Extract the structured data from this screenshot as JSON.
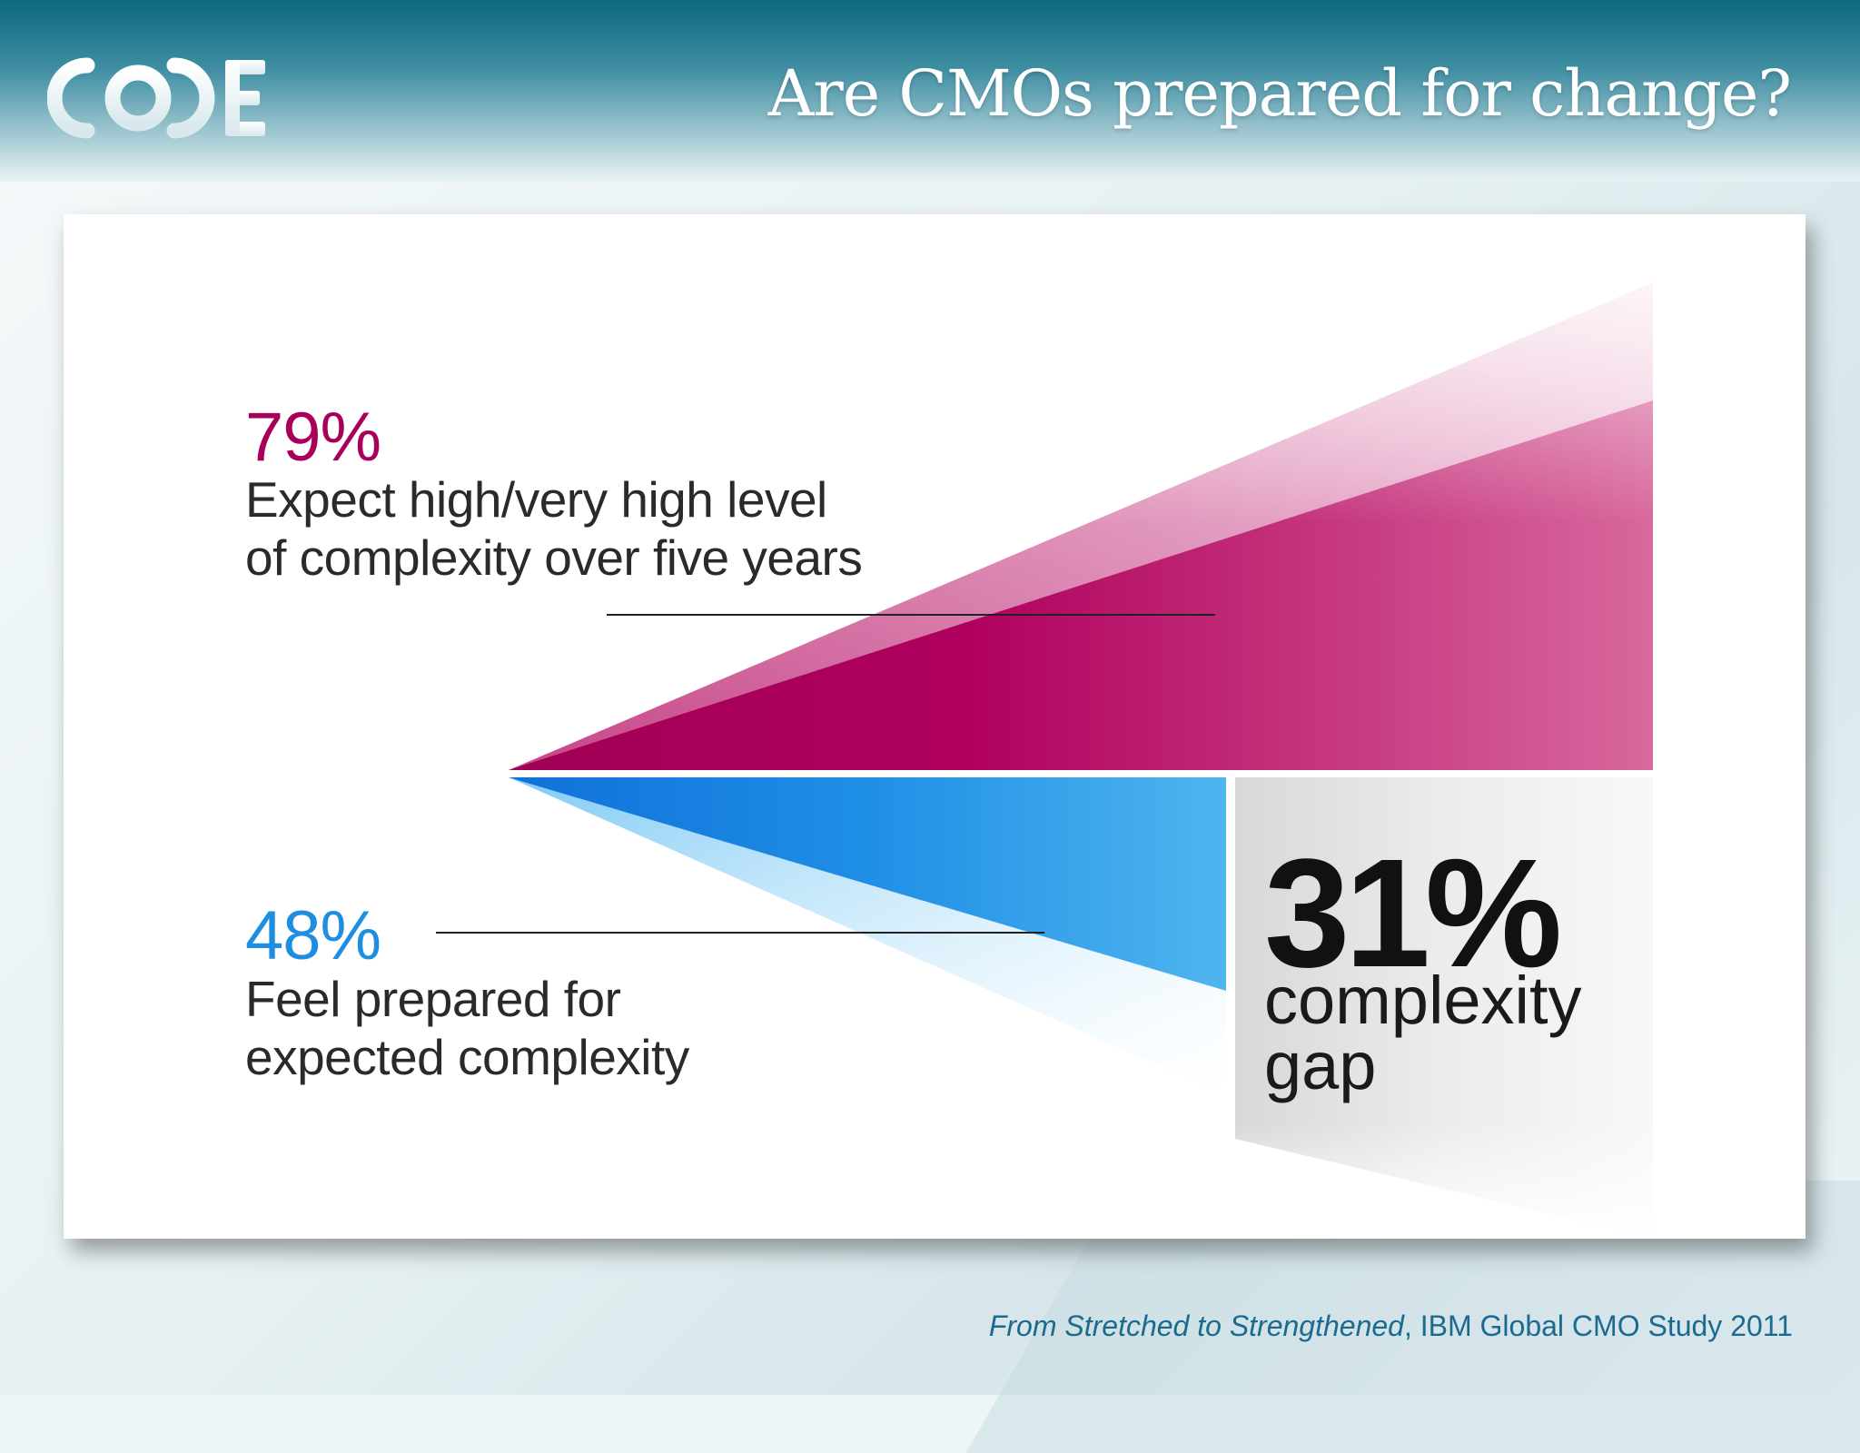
{
  "header": {
    "logo_text": "CODE",
    "title": "Are CMOs prepared for change?"
  },
  "diagram": {
    "upper": {
      "percent": "79%",
      "value": 79,
      "description": "Expect high/very high level of complexity over five years",
      "color": "#a8005a"
    },
    "lower": {
      "percent": "48%",
      "value": 48,
      "description": "Feel prepared for expected complexity",
      "color": "#1e8fe0"
    },
    "gap": {
      "percent": "31%",
      "value": 31,
      "label": "complexity gap"
    }
  },
  "footer": {
    "citation_title": "From Stretched to Strengthened",
    "citation_source": ", IBM Global CMO Study 2011"
  }
}
